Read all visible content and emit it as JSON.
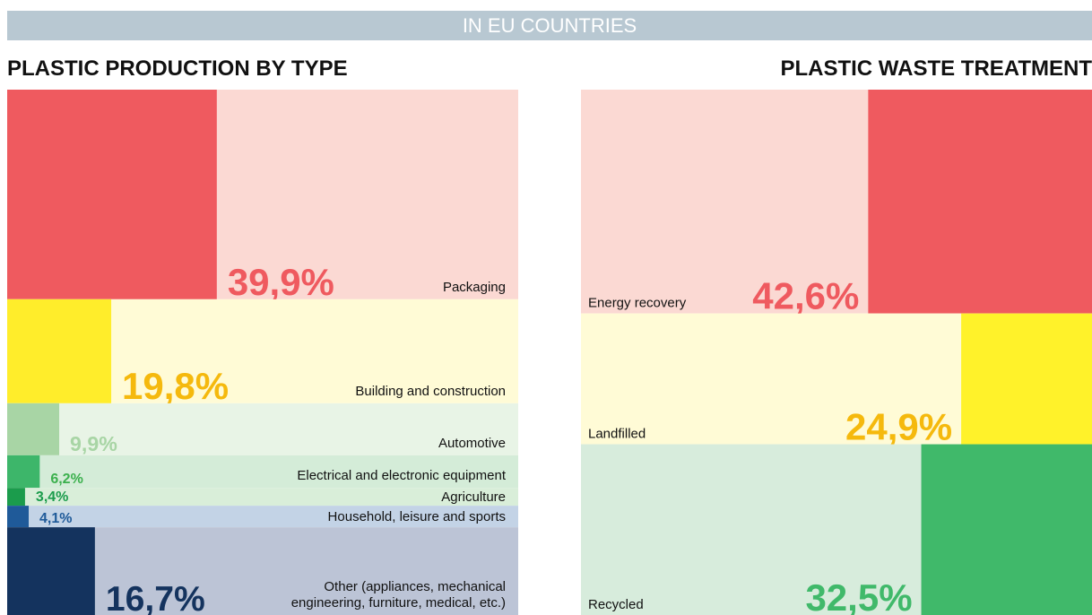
{
  "banner": "IN EU COUNTRIES",
  "chart_data": [
    {
      "type": "proportional",
      "side": "left",
      "title": "PLASTIC PRODUCTION BY TYPE",
      "categories": [
        "Packaging",
        "Building and construction",
        "Automotive",
        "Electrical and electronic equipment",
        "Agriculture",
        "Household, leisure and sports",
        "Other (appliances, mechanical engineering, furniture, medical, etc.)"
      ],
      "values": [
        39.9,
        19.8,
        9.9,
        6.2,
        3.4,
        4.1,
        16.7
      ],
      "value_labels": [
        "39,9%",
        "19,8%",
        "9,9%",
        "6,2%",
        "3,4%",
        "4,1%",
        "16,7%"
      ],
      "colors": [
        "#ef5a5f",
        "#ffed2b",
        "#a8d5a5",
        "#3db66a",
        "#1b9c4c",
        "#1f5a99",
        "#14335e"
      ],
      "light_colors": [
        "#fbd9d3",
        "#fffbd6",
        "#e8f4e6",
        "#d4ecd8",
        "#d9eed9",
        "#c3d3e6",
        "#bcc4d6"
      ],
      "label_colors": [
        "#ef5a5f",
        "#f5b90d",
        "#a8d5a5",
        "#3bb04d",
        "#1b9c4c",
        "#1f5a99",
        "#14335e"
      ]
    },
    {
      "type": "proportional",
      "side": "right",
      "title": "PLASTIC WASTE TREATMENT",
      "categories": [
        "Energy recovery",
        "Landfilled",
        "Recycled"
      ],
      "values": [
        42.6,
        24.9,
        32.5
      ],
      "value_labels": [
        "42,6%",
        "24,9%",
        "32,5%"
      ],
      "colors": [
        "#ef5a5f",
        "#fff22a",
        "#40b96a"
      ],
      "light_colors": [
        "#fbd9d3",
        "#fffbd6",
        "#d7ecdc"
      ],
      "label_colors": [
        "#ef5a5f",
        "#f5b90d",
        "#40b96a"
      ]
    }
  ]
}
